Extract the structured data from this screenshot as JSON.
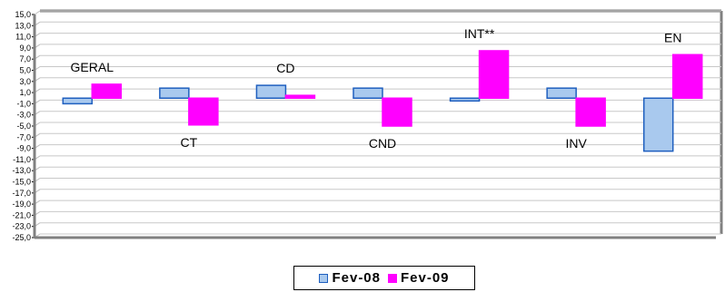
{
  "chart_data": {
    "type": "bar",
    "categories": [
      "GERAL",
      "CT",
      "CD",
      "CND",
      "INT**",
      "INV",
      "EN"
    ],
    "series": [
      {
        "name": "Fev-08",
        "values": [
          -1.0,
          1.8,
          2.3,
          1.8,
          -0.5,
          1.8,
          -9.5
        ]
      },
      {
        "name": "Fev-09",
        "values": [
          2.5,
          -4.8,
          0.5,
          -5.0,
          8.5,
          -5.0,
          7.8
        ]
      }
    ],
    "ylim": [
      -25,
      15
    ],
    "y_ticks": [
      "15,0",
      "13,0",
      "11,0",
      "9,0",
      "7,0",
      "5,0",
      "3,0",
      "1,0",
      "-1,0",
      "-3,0",
      "-5,0",
      "-7,0",
      "-9,0",
      "-11,0",
      "-13,0",
      "-15,0",
      "-17,0",
      "-19,0",
      "-21,0",
      "-23,0",
      "-25,0"
    ],
    "grid": true,
    "legend_position": "bottom",
    "colors": {
      "Fev-08": "#a9c9ee",
      "Fev-08_border": "#1f5fbf",
      "Fev-09": "#ff00ff"
    },
    "category_label_side": [
      "above",
      "below",
      "above",
      "below",
      "above",
      "below",
      "above"
    ]
  }
}
